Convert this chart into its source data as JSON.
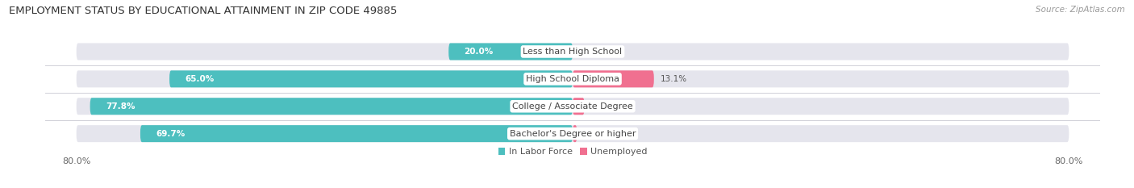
{
  "title": "EMPLOYMENT STATUS BY EDUCATIONAL ATTAINMENT IN ZIP CODE 49885",
  "source": "Source: ZipAtlas.com",
  "categories": [
    "Less than High School",
    "High School Diploma",
    "College / Associate Degree",
    "Bachelor's Degree or higher"
  ],
  "labor_force": [
    20.0,
    65.0,
    77.8,
    69.7
  ],
  "unemployed": [
    0.0,
    13.1,
    1.9,
    0.7
  ],
  "labor_force_color": "#4dbfbf",
  "unemployed_color": "#f07090",
  "bar_bg_color": "#e5e5ed",
  "background_color": "#ffffff",
  "title_fontsize": 9.5,
  "source_fontsize": 7.5,
  "label_fontsize": 7.5,
  "axis_label_fontsize": 8,
  "legend_fontsize": 8,
  "bar_height": 0.62,
  "xlim": 85,
  "scale_max": 80.0,
  "sep_color": "#d0d0d8",
  "label_inside_color": "#ffffff",
  "label_outside_color": "#555555",
  "cat_label_fontsize": 8
}
